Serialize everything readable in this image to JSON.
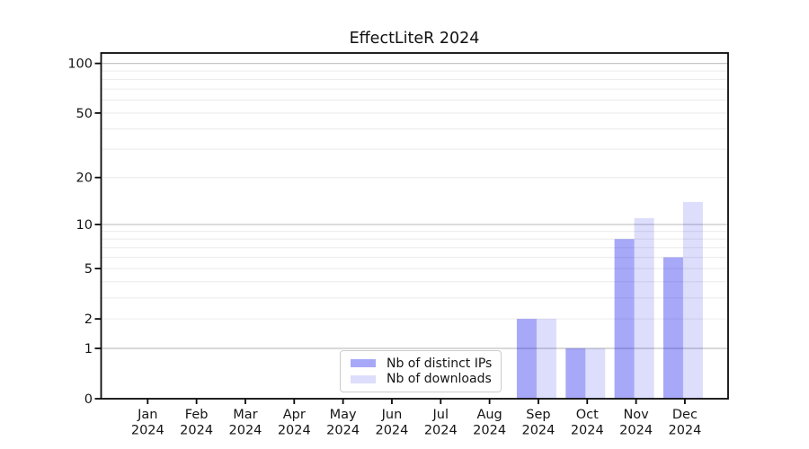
{
  "chart_data": {
    "type": "bar",
    "title": "EffectLiteR 2024",
    "x": {
      "categories": [
        "Jan",
        "Feb",
        "Mar",
        "Apr",
        "May",
        "Jun",
        "Jul",
        "Aug",
        "Sep",
        "Oct",
        "Nov",
        "Dec"
      ],
      "year": "2024"
    },
    "series": [
      {
        "name": "Nb of distinct IPs",
        "color": "rgba(25,25,238,0.375)",
        "values": [
          0,
          0,
          0,
          0,
          0,
          0,
          0,
          0,
          2,
          1,
          8,
          6
        ]
      },
      {
        "name": "Nb of downloads",
        "color": "rgba(25,25,238,0.15)",
        "values": [
          0,
          0,
          0,
          0,
          0,
          0,
          0,
          0,
          2,
          1,
          11,
          14
        ]
      }
    ],
    "yaxis": {
      "scale": "log1p",
      "tick_values": [
        0,
        1,
        2,
        5,
        10,
        20,
        50,
        100
      ],
      "tick_labels": [
        "0",
        "1",
        "2",
        "5",
        "10",
        "20",
        "50",
        "100"
      ],
      "major_gridlines": [
        1,
        10,
        100
      ],
      "minor_gridlines": [
        2,
        3,
        4,
        5,
        6,
        7,
        8,
        9,
        20,
        30,
        40,
        50,
        60,
        70,
        80,
        90
      ],
      "top_value": 115.6,
      "bottom_value": 0
    },
    "legend_position": "inside-bottom-center",
    "grid_on": true,
    "colors": {
      "grid_major": "#c6c6c6",
      "grid_minor": "#ececec",
      "axis": "#0a0a0a",
      "text": "#151515",
      "background": "#ffffff"
    }
  }
}
